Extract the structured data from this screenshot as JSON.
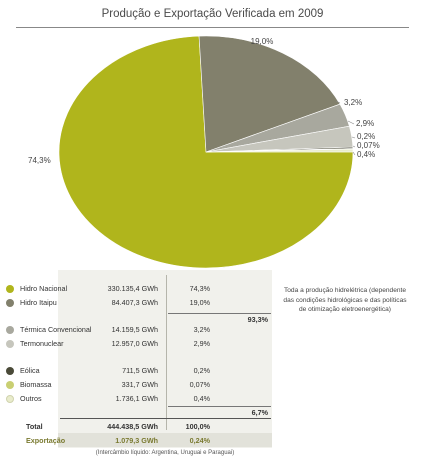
{
  "chart_data": {
    "type": "pie",
    "title": "Produção e Exportação Verificada em 2009",
    "slices": [
      {
        "name": "Hidro Nacional",
        "value": 74.3,
        "label": "74,3%",
        "color": "#b0b51c"
      },
      {
        "name": "Hidro Itaipu",
        "value": 19.0,
        "label": "19,0%",
        "color": "#82806c"
      },
      {
        "name": "Térmica Convencional",
        "value": 3.2,
        "label": "3,2%",
        "color": "#a8a89e"
      },
      {
        "name": "Termonuclear",
        "value": 2.9,
        "label": "2,9%",
        "color": "#c6c6bd"
      },
      {
        "name": "Eólica",
        "value": 0.2,
        "label": "0,2%",
        "color": "#4a4a38"
      },
      {
        "name": "Biomassa",
        "value": 0.07,
        "label": "0,07%",
        "color": "#c9cf72"
      },
      {
        "name": "Outros",
        "value": 0.4,
        "label": "0,4%",
        "color": "#e9eccc"
      }
    ]
  },
  "table": {
    "rows": [
      {
        "name": "Hidro Nacional",
        "gwh": "330.135,4 GWh",
        "pct": "74,3%",
        "color": "#b0b51c"
      },
      {
        "name": "Hidro Itaipu",
        "gwh": "84.407,3 GWh",
        "pct": "19,0%",
        "color": "#82806c"
      },
      {
        "name": "Térmica Convencional",
        "gwh": "14.159,5 GWh",
        "pct": "3,2%",
        "color": "#a8a89e"
      },
      {
        "name": "Termonuclear",
        "gwh": "12.957,0 GWh",
        "pct": "2,9%",
        "color": "#c6c6bd"
      },
      {
        "name": "Eólica",
        "gwh": "711,5 GWh",
        "pct": "0,2%",
        "color": "#4a4a38"
      },
      {
        "name": "Biomassa",
        "gwh": "331,7 GWh",
        "pct": "0,07%",
        "color": "#c9cf72"
      },
      {
        "name": "Outros",
        "gwh": "1.736,1 GWh",
        "pct": "0,4%",
        "color": "#e9eccc"
      }
    ],
    "subtotal_hydro": "93,3%",
    "subtotal_other": "6,7%",
    "total": {
      "label": "Total",
      "gwh": "444.438,5 GWh",
      "pct": "100,0%"
    },
    "export": {
      "label": "Exportação",
      "gwh": "1.079,3 GWh",
      "pct": "0,24%"
    }
  },
  "note": "Toda a produção hidrelétrica (dependente das condições hidrológicas e das políticas de otimização eletroenergética)",
  "footnote": "(Intercâmbio líquido: Argentina, Uruguai e Paraguai)"
}
